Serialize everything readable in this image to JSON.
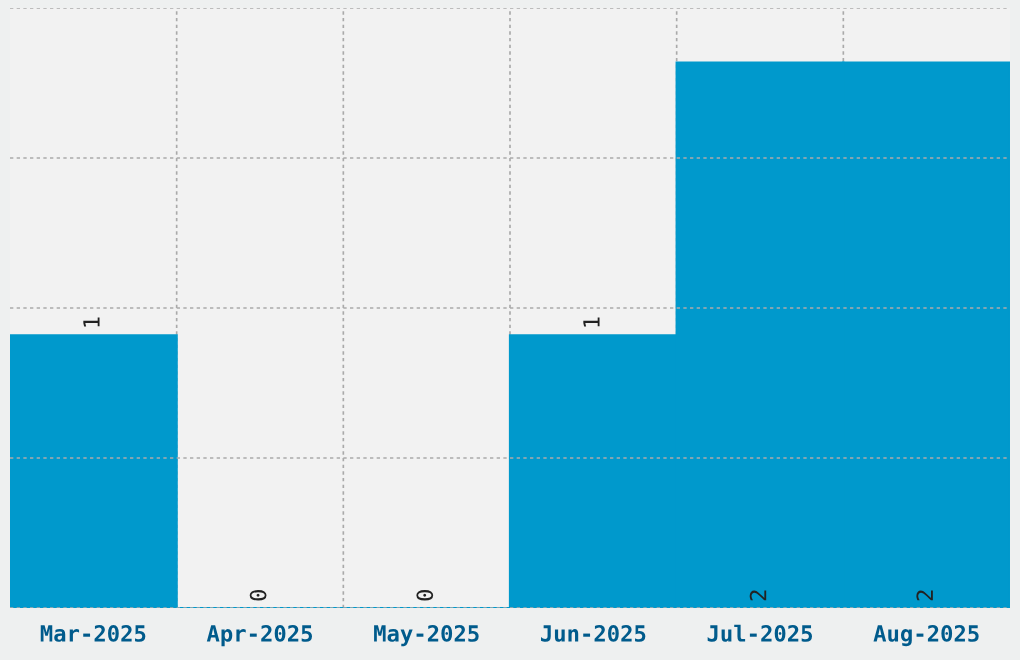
{
  "chart_data": {
    "type": "bar",
    "categories": [
      "Mar-2025",
      "Apr-2025",
      "May-2025",
      "Jun-2025",
      "Jul-2025",
      "Aug-2025"
    ],
    "values": [
      1,
      0,
      0,
      1,
      2,
      2
    ],
    "color": "#0099cc",
    "ylim": [
      0,
      2.2
    ],
    "yticks": [
      {
        "value": 0,
        "label": null
      },
      {
        "value": 0.55,
        "label": null
      },
      {
        "value": 1.1,
        "label": null
      },
      {
        "value": 1.65,
        "label": null
      },
      {
        "value": 2.2,
        "label": null
      }
    ],
    "tick_labels": "x",
    "grid": true,
    "data_labels": true
  }
}
